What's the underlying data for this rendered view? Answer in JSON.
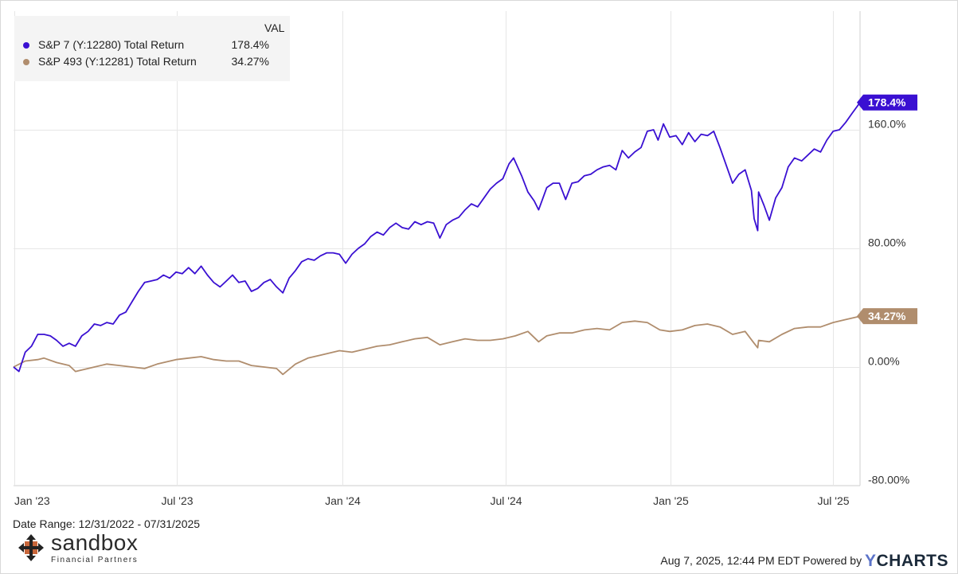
{
  "chart_data": {
    "type": "line",
    "legend": {
      "header": "VAL",
      "placement": "top-left",
      "entries": [
        {
          "name": "S&P 7 (Y:12280) Total Return",
          "value": "178.4%"
        },
        {
          "name": "S&P 493 (Y:12281) Total Return",
          "value": "34.27%"
        }
      ]
    },
    "x_ticks": [
      {
        "label": "Jan '23",
        "date": "2023-01-01"
      },
      {
        "label": "Jul '23",
        "date": "2023-07-01"
      },
      {
        "label": "Jan '24",
        "date": "2024-01-01"
      },
      {
        "label": "Jul '24",
        "date": "2024-07-01"
      },
      {
        "label": "Jan '25",
        "date": "2025-01-01"
      },
      {
        "label": "Jul '25",
        "date": "2025-07-01"
      }
    ],
    "y_ticks": [
      {
        "label": "160.0%",
        "value": 160
      },
      {
        "label": "80.00%",
        "value": 80
      },
      {
        "label": "0.00%",
        "value": 0
      },
      {
        "label": "-80.00%",
        "value": -80
      }
    ],
    "xlim": [
      "2022-12-31",
      "2025-07-31"
    ],
    "ylim": [
      -80,
      240
    ],
    "grid": true,
    "series": [
      {
        "name": "S&P 7 (Y:12280) Total Return",
        "color": "#3a10d2",
        "end_label": "178.4%",
        "points": [
          [
            "2022-12-31",
            0
          ],
          [
            "2023-01-06",
            -3
          ],
          [
            "2023-01-13",
            10
          ],
          [
            "2023-01-20",
            14
          ],
          [
            "2023-01-27",
            22
          ],
          [
            "2023-02-03",
            22
          ],
          [
            "2023-02-10",
            21
          ],
          [
            "2023-02-17",
            18
          ],
          [
            "2023-02-24",
            14
          ],
          [
            "2023-03-03",
            16
          ],
          [
            "2023-03-10",
            14
          ],
          [
            "2023-03-17",
            21
          ],
          [
            "2023-03-24",
            24
          ],
          [
            "2023-03-31",
            29
          ],
          [
            "2023-04-07",
            28
          ],
          [
            "2023-04-14",
            30
          ],
          [
            "2023-04-21",
            29
          ],
          [
            "2023-04-28",
            35
          ],
          [
            "2023-05-05",
            37
          ],
          [
            "2023-05-12",
            44
          ],
          [
            "2023-05-19",
            51
          ],
          [
            "2023-05-26",
            57
          ],
          [
            "2023-06-02",
            58
          ],
          [
            "2023-06-09",
            59
          ],
          [
            "2023-06-16",
            62
          ],
          [
            "2023-06-23",
            60
          ],
          [
            "2023-06-30",
            64
          ],
          [
            "2023-07-07",
            63
          ],
          [
            "2023-07-14",
            67
          ],
          [
            "2023-07-21",
            63
          ],
          [
            "2023-07-28",
            68
          ],
          [
            "2023-08-04",
            62
          ],
          [
            "2023-08-11",
            57
          ],
          [
            "2023-08-18",
            54
          ],
          [
            "2023-08-25",
            58
          ],
          [
            "2023-09-01",
            62
          ],
          [
            "2023-09-08",
            57
          ],
          [
            "2023-09-15",
            58
          ],
          [
            "2023-09-22",
            51
          ],
          [
            "2023-09-29",
            53
          ],
          [
            "2023-10-06",
            57
          ],
          [
            "2023-10-13",
            59
          ],
          [
            "2023-10-20",
            54
          ],
          [
            "2023-10-27",
            50
          ],
          [
            "2023-11-03",
            60
          ],
          [
            "2023-11-10",
            65
          ],
          [
            "2023-11-17",
            71
          ],
          [
            "2023-11-24",
            73
          ],
          [
            "2023-12-01",
            72
          ],
          [
            "2023-12-08",
            75
          ],
          [
            "2023-12-15",
            77
          ],
          [
            "2023-12-22",
            77
          ],
          [
            "2023-12-29",
            76
          ],
          [
            "2024-01-05",
            70
          ],
          [
            "2024-01-12",
            76
          ],
          [
            "2024-01-19",
            80
          ],
          [
            "2024-01-26",
            83
          ],
          [
            "2024-02-02",
            88
          ],
          [
            "2024-02-09",
            91
          ],
          [
            "2024-02-16",
            89
          ],
          [
            "2024-02-23",
            94
          ],
          [
            "2024-03-01",
            97
          ],
          [
            "2024-03-08",
            94
          ],
          [
            "2024-03-15",
            93
          ],
          [
            "2024-03-22",
            98
          ],
          [
            "2024-03-29",
            96
          ],
          [
            "2024-04-05",
            98
          ],
          [
            "2024-04-12",
            97
          ],
          [
            "2024-04-19",
            87
          ],
          [
            "2024-04-26",
            96
          ],
          [
            "2024-05-03",
            99
          ],
          [
            "2024-05-10",
            101
          ],
          [
            "2024-05-17",
            106
          ],
          [
            "2024-05-24",
            110
          ],
          [
            "2024-05-31",
            108
          ],
          [
            "2024-06-07",
            114
          ],
          [
            "2024-06-14",
            120
          ],
          [
            "2024-06-21",
            124
          ],
          [
            "2024-06-28",
            127
          ],
          [
            "2024-07-05",
            137
          ],
          [
            "2024-07-10",
            141
          ],
          [
            "2024-07-19",
            129
          ],
          [
            "2024-07-26",
            118
          ],
          [
            "2024-08-02",
            112
          ],
          [
            "2024-08-07",
            106
          ],
          [
            "2024-08-16",
            121
          ],
          [
            "2024-08-23",
            124
          ],
          [
            "2024-08-30",
            124
          ],
          [
            "2024-09-06",
            113
          ],
          [
            "2024-09-13",
            124
          ],
          [
            "2024-09-20",
            125
          ],
          [
            "2024-09-27",
            129
          ],
          [
            "2024-10-04",
            130
          ],
          [
            "2024-10-11",
            133
          ],
          [
            "2024-10-18",
            135
          ],
          [
            "2024-10-25",
            136
          ],
          [
            "2024-11-01",
            133
          ],
          [
            "2024-11-08",
            146
          ],
          [
            "2024-11-15",
            141
          ],
          [
            "2024-11-22",
            145
          ],
          [
            "2024-11-29",
            148
          ],
          [
            "2024-12-06",
            159
          ],
          [
            "2024-12-13",
            160
          ],
          [
            "2024-12-18",
            153
          ],
          [
            "2024-12-24",
            164
          ],
          [
            "2024-12-31",
            155
          ],
          [
            "2025-01-07",
            156
          ],
          [
            "2025-01-14",
            150
          ],
          [
            "2025-01-21",
            158
          ],
          [
            "2025-01-28",
            152
          ],
          [
            "2025-02-04",
            157
          ],
          [
            "2025-02-11",
            156
          ],
          [
            "2025-02-18",
            159
          ],
          [
            "2025-02-25",
            148
          ],
          [
            "2025-03-04",
            136
          ],
          [
            "2025-03-11",
            124
          ],
          [
            "2025-03-18",
            130
          ],
          [
            "2025-03-25",
            133
          ],
          [
            "2025-04-01",
            119
          ],
          [
            "2025-04-04",
            100
          ],
          [
            "2025-04-08",
            92
          ],
          [
            "2025-04-09",
            118
          ],
          [
            "2025-04-15",
            109
          ],
          [
            "2025-04-21",
            99
          ],
          [
            "2025-04-28",
            114
          ],
          [
            "2025-05-05",
            121
          ],
          [
            "2025-05-12",
            135
          ],
          [
            "2025-05-19",
            141
          ],
          [
            "2025-05-27",
            139
          ],
          [
            "2025-06-03",
            143
          ],
          [
            "2025-06-10",
            147
          ],
          [
            "2025-06-17",
            145
          ],
          [
            "2025-06-24",
            153
          ],
          [
            "2025-07-01",
            159
          ],
          [
            "2025-07-08",
            160
          ],
          [
            "2025-07-15",
            165
          ],
          [
            "2025-07-22",
            171
          ],
          [
            "2025-07-31",
            178.4
          ]
        ]
      },
      {
        "name": "S&P 493 (Y:12281) Total Return",
        "color": "#b08d6d",
        "end_label": "34.27%",
        "points": [
          [
            "2022-12-31",
            0
          ],
          [
            "2023-01-13",
            4
          ],
          [
            "2023-01-27",
            5
          ],
          [
            "2023-02-03",
            6
          ],
          [
            "2023-02-17",
            3
          ],
          [
            "2023-03-03",
            1
          ],
          [
            "2023-03-10",
            -3
          ],
          [
            "2023-03-17",
            -2
          ],
          [
            "2023-03-31",
            0
          ],
          [
            "2023-04-14",
            2
          ],
          [
            "2023-04-28",
            1
          ],
          [
            "2023-05-12",
            0
          ],
          [
            "2023-05-26",
            -1
          ],
          [
            "2023-06-09",
            2
          ],
          [
            "2023-06-30",
            5
          ],
          [
            "2023-07-14",
            6
          ],
          [
            "2023-07-28",
            7
          ],
          [
            "2023-08-11",
            5
          ],
          [
            "2023-08-25",
            4
          ],
          [
            "2023-09-08",
            4
          ],
          [
            "2023-09-22",
            1
          ],
          [
            "2023-10-06",
            0
          ],
          [
            "2023-10-20",
            -1
          ],
          [
            "2023-10-27",
            -5
          ],
          [
            "2023-11-10",
            2
          ],
          [
            "2023-11-24",
            6
          ],
          [
            "2023-12-08",
            8
          ],
          [
            "2023-12-29",
            11
          ],
          [
            "2024-01-12",
            10
          ],
          [
            "2024-01-26",
            12
          ],
          [
            "2024-02-09",
            14
          ],
          [
            "2024-02-23",
            15
          ],
          [
            "2024-03-08",
            17
          ],
          [
            "2024-03-22",
            19
          ],
          [
            "2024-04-05",
            20
          ],
          [
            "2024-04-19",
            15
          ],
          [
            "2024-05-03",
            17
          ],
          [
            "2024-05-17",
            19
          ],
          [
            "2024-05-31",
            18
          ],
          [
            "2024-06-14",
            18
          ],
          [
            "2024-06-28",
            19
          ],
          [
            "2024-07-12",
            21
          ],
          [
            "2024-07-26",
            24
          ],
          [
            "2024-08-07",
            17
          ],
          [
            "2024-08-16",
            21
          ],
          [
            "2024-08-30",
            23
          ],
          [
            "2024-09-13",
            23
          ],
          [
            "2024-09-27",
            25
          ],
          [
            "2024-10-11",
            26
          ],
          [
            "2024-10-25",
            25
          ],
          [
            "2024-11-08",
            30
          ],
          [
            "2024-11-22",
            31
          ],
          [
            "2024-12-06",
            30
          ],
          [
            "2024-12-20",
            25
          ],
          [
            "2024-12-31",
            24
          ],
          [
            "2025-01-14",
            25
          ],
          [
            "2025-01-28",
            28
          ],
          [
            "2025-02-11",
            29
          ],
          [
            "2025-02-25",
            27
          ],
          [
            "2025-03-11",
            22
          ],
          [
            "2025-03-25",
            24
          ],
          [
            "2025-04-04",
            16
          ],
          [
            "2025-04-08",
            13
          ],
          [
            "2025-04-09",
            18
          ],
          [
            "2025-04-21",
            17
          ],
          [
            "2025-05-05",
            22
          ],
          [
            "2025-05-19",
            26
          ],
          [
            "2025-06-03",
            27
          ],
          [
            "2025-06-17",
            27
          ],
          [
            "2025-07-01",
            30
          ],
          [
            "2025-07-15",
            32
          ],
          [
            "2025-07-31",
            34.27
          ]
        ]
      }
    ]
  },
  "footer": {
    "date_range": "Date Range: 12/31/2022 - 07/31/2025",
    "timestamp": "Aug 7, 2025, 12:44 PM EDT Powered by",
    "ycharts_y": "Y",
    "ycharts_rest": "CHARTS"
  },
  "brand": {
    "name": "sandbox",
    "subtitle": "Financial Partners"
  }
}
